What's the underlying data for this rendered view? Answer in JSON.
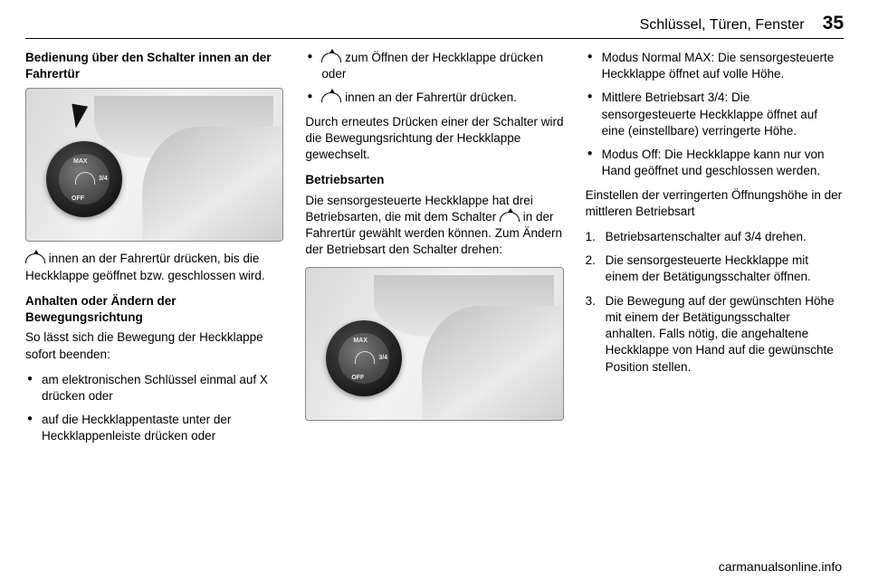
{
  "header": {
    "section_title": "Schlüssel, Türen, Fenster",
    "page_number": "35"
  },
  "col1": {
    "subhead1": "Bedienung über den Schalter innen an der Fahrertür",
    "image1": {
      "dial_labels": {
        "max": "MAX",
        "mid": "3/4",
        "off": "OFF"
      }
    },
    "para1_prefix": "",
    "para1": " innen an der Fahrertür drücken, bis die Heckklappe geöffnet bzw. geschlossen wird.",
    "subhead2": "Anhalten oder Ändern der Bewegungsrichtung",
    "para2": "So lässt sich die Bewegung der Heck­klappe sofort beenden:",
    "bullets": [
      "am elektronischen Schlüssel einmal auf  X  drücken oder",
      "auf die Heckklappentaste unter der Heckklappenleiste drücken oder"
    ]
  },
  "col2": {
    "bullets_top": [
      " zum Öffnen der Heckklappe drücken oder",
      " innen an der Fahrertür drücken."
    ],
    "bullets_top_has_glyph": [
      true,
      true
    ],
    "para1": "Durch erneutes Drücken einer der Schalter wird die Bewegungsrichtung der Heckklappe gewechselt.",
    "subhead1": "Betriebsarten",
    "para2_a": "Die sensorgesteuerte Heckklappe hat drei Betriebsarten, die mit dem Schalter ",
    "para2_b": " in der Fahrertür gewählt werden können. Zum Ändern der Betriebsart den Schalter drehen:",
    "image2": {
      "dial_labels": {
        "max": "MAX",
        "mid": "3/4",
        "off": "OFF"
      }
    }
  },
  "col3": {
    "bullets": [
      "Modus Normal MAX: Die sensor­gesteuerte Heckklappe öffnet auf volle Höhe.",
      "Mittlere Betriebsart 3/4: Die sensorgesteuerte Heckklappe öffnet auf eine (einstellbare) verringerte Höhe.",
      "Modus Off: Die Heckklappe kann nur von Hand geöffnet und geschlossen werden."
    ],
    "para1": "Einstellen der verringerten Öffnungshöhe in der mittleren Betriebsart",
    "steps": [
      "Betriebsartenschalter auf 3/4 drehen.",
      "Die sensorgesteuerte Heck­klappe mit einem der Betäti­gungsschalter öffnen.",
      "Die Bewegung auf der gewünsch­ten Höhe mit einem der Betäti­gungsschalter anhalten. Falls nötig, die angehaltene Heck­klappe von Hand auf die gewünschte Position stellen."
    ]
  },
  "watermark": "carmanualsonline.info"
}
